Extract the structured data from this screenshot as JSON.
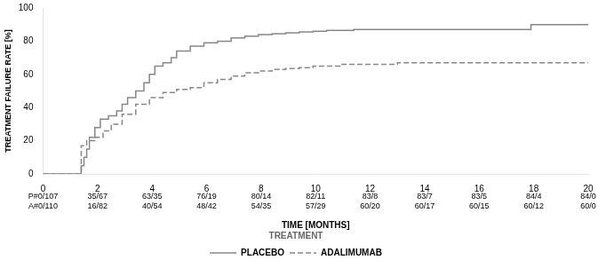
{
  "chart_data": {
    "type": "step",
    "xlabel": "TIME [MONTHS]",
    "ylabel": "TREATMENT FAILURE RATE [%]",
    "series": [
      {
        "name": "PLACEBO",
        "color": "#888888",
        "line_style": "solid",
        "x": [
          0,
          1.4,
          1.4,
          1.5,
          1.6,
          1.7,
          1.9,
          2.1,
          2.4,
          2.7,
          2.9,
          3.1,
          3.4,
          3.7,
          3.9,
          4.1,
          4.4,
          4.7,
          4.9,
          5.4,
          5.9,
          6.4,
          6.9,
          7.4,
          7.9,
          8.4,
          8.9,
          9.4,
          9.9,
          10.4,
          10.9,
          11.4,
          11.9,
          13.0,
          14.0,
          16.0,
          17.9,
          18.4,
          20.0
        ],
        "values": [
          0,
          0,
          2,
          5,
          10,
          15,
          22,
          28,
          33,
          35,
          38,
          42,
          46,
          50,
          55,
          60,
          65,
          67,
          70,
          74,
          77,
          79,
          80,
          82,
          83,
          84,
          84.5,
          85,
          85.5,
          86,
          86.5,
          86.5,
          87,
          87,
          87,
          87,
          87,
          90,
          90
        ]
      },
      {
        "name": "ADALIMUMAB",
        "color": "#888888",
        "line_style": "dashed",
        "x": [
          0,
          1.4,
          1.4,
          1.6,
          1.9,
          2.2,
          2.5,
          2.9,
          3.4,
          3.9,
          4.4,
          4.9,
          5.4,
          5.9,
          6.4,
          6.9,
          7.4,
          7.9,
          8.4,
          8.9,
          9.4,
          9.9,
          10.9,
          11.9,
          13.0,
          14.0,
          16.0,
          18.0,
          20.0
        ],
        "values": [
          0,
          0,
          15,
          17,
          20,
          22,
          26,
          30,
          36,
          42,
          46,
          49,
          51,
          52,
          55,
          57,
          59,
          61,
          62,
          63,
          63.5,
          64,
          65,
          66,
          66,
          67,
          67,
          67,
          67
        ]
      }
    ],
    "xlim": [
      0,
      20
    ],
    "xticks": [
      0,
      2,
      4,
      6,
      8,
      10,
      12,
      14,
      16,
      18,
      20
    ],
    "ylim": [
      0,
      100
    ],
    "yticks": [
      0,
      20,
      40,
      60,
      80,
      100
    ],
    "grid": false,
    "legend": "bottom",
    "legend_title": "TREATMENT",
    "table_rows": [
      [
        "P#0/107",
        "35/67",
        "63/35",
        "76/19",
        "80/14",
        "82/11",
        "83/8",
        "83/7",
        "83/5",
        "84/4",
        "84/0"
      ],
      [
        "A#0/110",
        "16/82",
        "40/54",
        "48/42",
        "54/35",
        "57/29",
        "60/20",
        "60/17",
        "60/15",
        "60/12",
        "60/0"
      ]
    ]
  }
}
